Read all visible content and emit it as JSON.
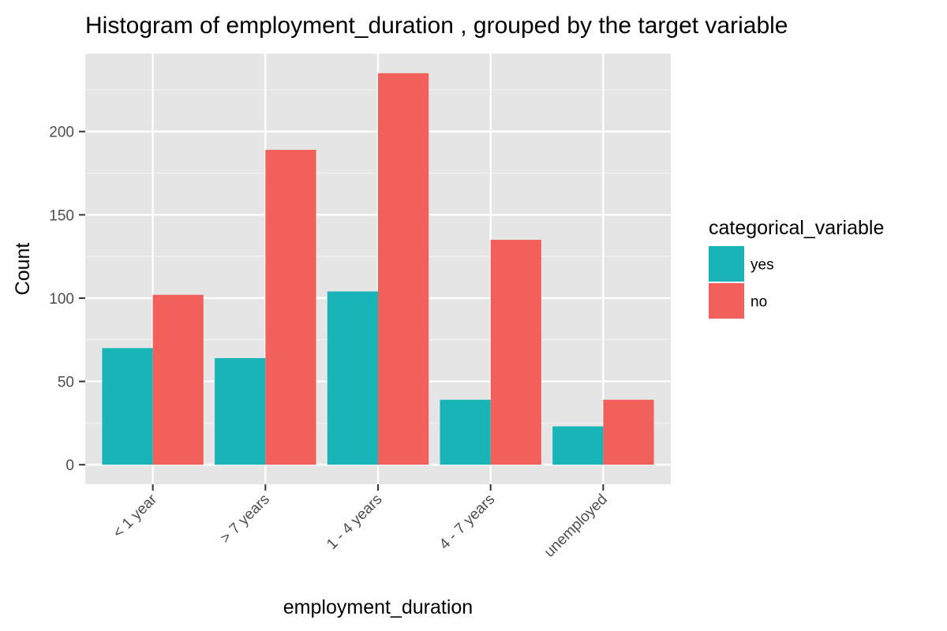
{
  "chart_data": {
    "type": "bar",
    "title": "Histogram of employment_duration , grouped by the target variable",
    "xlabel": "employment_duration",
    "ylabel": "Count",
    "categories": [
      "< 1 year",
      "> 7 years",
      "1 - 4 years",
      "4 - 7 years",
      "unemployed"
    ],
    "series": [
      {
        "name": "yes",
        "color": "#19B4B8",
        "values": [
          70,
          64,
          104,
          39,
          23
        ]
      },
      {
        "name": "no",
        "color": "#F2605B",
        "values": [
          102,
          189,
          235,
          135,
          39
        ]
      }
    ],
    "ylim": [
      -11.75,
      246.75
    ],
    "yticks": [
      0,
      50,
      100,
      150,
      200
    ],
    "grid": true,
    "legend": {
      "title": "categorical_variable",
      "position": "right"
    },
    "panel_background": "#E5E5E5"
  }
}
